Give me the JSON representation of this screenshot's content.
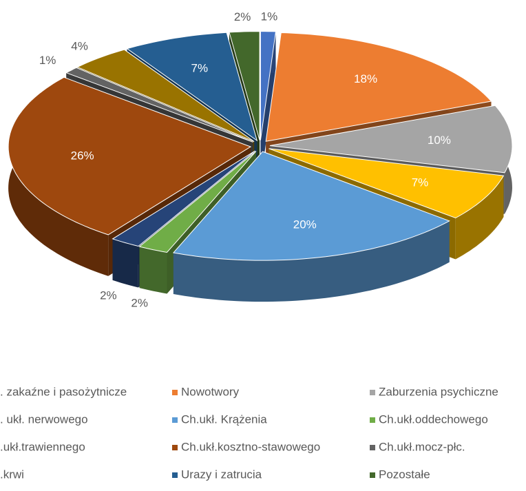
{
  "chart_data": {
    "type": "pie3d",
    "series": [
      {
        "name": ". zakaźne i pasożytnicze",
        "color": "#4472c4"
      },
      {
        "name": "Nowotwory",
        "color": "#ed7d31"
      },
      {
        "name": "Zaburzenia psychiczne",
        "color": "#a5a5a5"
      },
      {
        "name": ". ukł. nerwowego",
        "color": "#ffc000"
      },
      {
        "name": "Ch.ukł. Krążenia",
        "color": "#5b9bd5"
      },
      {
        "name": "Ch.ukł.oddechowego",
        "color": "#70ad47"
      },
      {
        "name": ".ukł.trawiennego",
        "color": "#264478"
      },
      {
        "name": "Ch.ukł.kosztno-stawowego",
        "color": "#9e480e"
      },
      {
        "name": "Ch.ukł.mocz-płc.",
        "color": "#636363"
      },
      {
        "name": ".krwi",
        "color": "#997300"
      },
      {
        "name": "Urazy i zatrucia",
        "color": "#255e91"
      },
      {
        "name": "Pozostałe",
        "color": "#43682b"
      }
    ],
    "values": [
      1,
      18,
      10,
      7,
      20,
      2,
      2,
      26,
      1,
      4,
      7,
      2
    ],
    "value_labels": [
      "1%",
      "18%",
      "10%",
      "7%",
      "20%",
      "2%",
      "2%",
      "26%",
      "1%",
      "4%",
      "7%",
      "2%"
    ],
    "legend": "bottom"
  }
}
